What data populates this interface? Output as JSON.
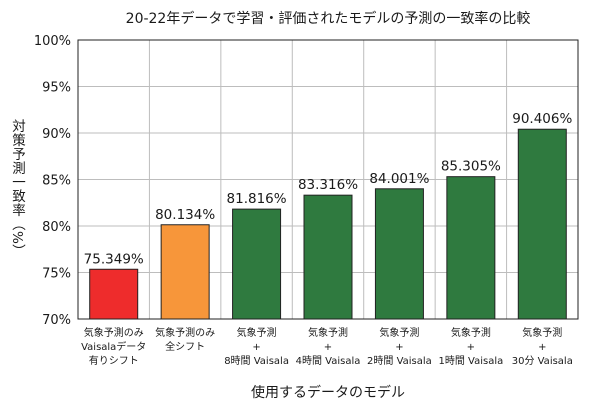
{
  "chart_data": {
    "type": "bar",
    "title": "20-22年データで学習・評価されたモデルの予測の一致率の比較",
    "xlabel": "使用するデータのモデル",
    "ylabel": "対策予測一致率（%）",
    "ylim": [
      70,
      100
    ],
    "yticks": [
      "70%",
      "75%",
      "80%",
      "85%",
      "90%",
      "95%",
      "100%"
    ],
    "grid": true,
    "categories": [
      [
        "気象予測のみ",
        "Vaisalaデータ",
        "有りシフト"
      ],
      [
        "気象予測のみ",
        "全シフト"
      ],
      [
        "気象予測",
        "+",
        "8時間 Vaisala"
      ],
      [
        "気象予測",
        "+",
        "4時間 Vaisala"
      ],
      [
        "気象予測",
        "+",
        "2時間 Vaisala"
      ],
      [
        "気象予測",
        "+",
        "1時間 Vaisala"
      ],
      [
        "気象予測",
        "+",
        "30分 Vaisala"
      ]
    ],
    "values": [
      75.349,
      80.134,
      81.816,
      83.316,
      84.001,
      85.305,
      90.406
    ],
    "data_labels": [
      "75.349%",
      "80.134%",
      "81.816%",
      "83.316%",
      "84.001%",
      "85.305%",
      "90.406%"
    ],
    "colors": [
      "#ee2c2c",
      "#f7963a",
      "#2f7a3f",
      "#2f7a3f",
      "#2f7a3f",
      "#2f7a3f",
      "#2f7a3f"
    ]
  }
}
